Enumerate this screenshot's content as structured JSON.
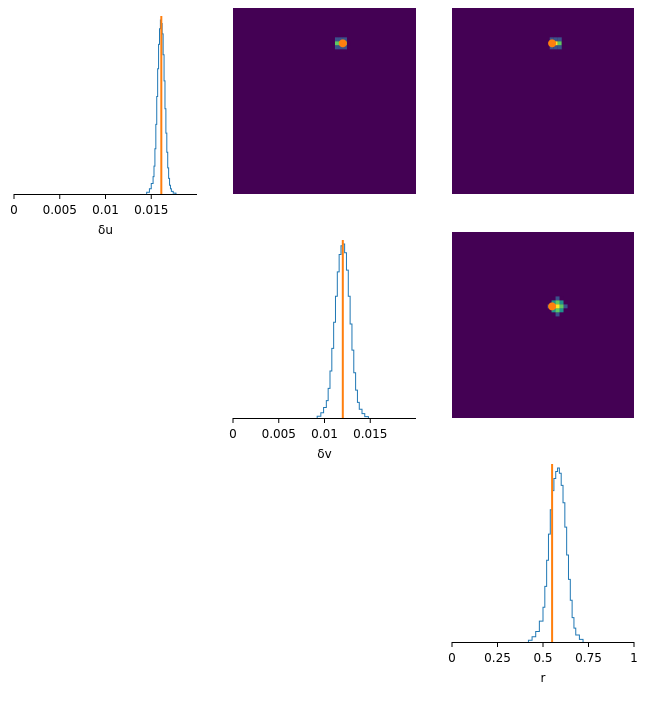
{
  "colors": {
    "histogram": "#1f77b4",
    "true_value": "#ff7f0e",
    "heatmap_background": "#440154",
    "axis": "#000000"
  },
  "chart_data": [
    {
      "type": "histogram",
      "panel": "row1-col1",
      "xlabel": "δu",
      "xlim": [
        0,
        0.02
      ],
      "x_ticks": [
        0,
        0.005,
        0.01,
        0.015
      ],
      "x_tick_labels": [
        "0",
        "0.005",
        "0.01",
        "0.015"
      ],
      "true_value": 0.0161,
      "bins_x": [
        0.0145,
        0.0148,
        0.015,
        0.0152,
        0.0153,
        0.0154,
        0.0155,
        0.0156,
        0.0157,
        0.0158,
        0.0159,
        0.016,
        0.0161,
        0.0162,
        0.0163,
        0.0164,
        0.0165,
        0.0166,
        0.0167,
        0.0168,
        0.0169,
        0.017,
        0.0171,
        0.0172,
        0.0174,
        0.0177
      ],
      "counts": [
        0.01,
        0.03,
        0.06,
        0.1,
        0.16,
        0.26,
        0.4,
        0.56,
        0.72,
        0.86,
        0.95,
        1.0,
        0.98,
        0.92,
        0.8,
        0.65,
        0.49,
        0.35,
        0.24,
        0.15,
        0.09,
        0.05,
        0.03,
        0.015,
        0.005,
        0.0
      ]
    },
    {
      "type": "heatmap",
      "panel": "row1-col2",
      "description_x": "δv",
      "description_y": "δu",
      "peak_x_fraction": 0.59,
      "peak_y_fraction": 0.81,
      "true_x_fraction": 0.6,
      "true_y_fraction": 0.81,
      "spread_x_fraction": 0.045,
      "spread_y_fraction": 0.03
    },
    {
      "type": "heatmap",
      "panel": "row1-col3",
      "description_x": "r",
      "description_y": "δu",
      "peak_x_fraction": 0.57,
      "peak_y_fraction": 0.81,
      "true_x_fraction": 0.55,
      "true_y_fraction": 0.81,
      "spread_x_fraction": 0.045,
      "spread_y_fraction": 0.03
    },
    {
      "type": "histogram",
      "panel": "row2-col2",
      "xlabel": "δv",
      "xlim": [
        0,
        0.02
      ],
      "x_ticks": [
        0,
        0.005,
        0.01,
        0.015
      ],
      "x_tick_labels": [
        "0",
        "0.005",
        "0.01",
        "0.015"
      ],
      "true_value": 0.012,
      "bins_x": [
        0.0092,
        0.0096,
        0.0099,
        0.0102,
        0.0104,
        0.0106,
        0.0108,
        0.011,
        0.0112,
        0.0114,
        0.0116,
        0.0118,
        0.012,
        0.0122,
        0.0124,
        0.0126,
        0.0128,
        0.013,
        0.0132,
        0.0134,
        0.0136,
        0.0138,
        0.0141,
        0.0144,
        0.0148
      ],
      "counts": [
        0.01,
        0.03,
        0.06,
        0.1,
        0.17,
        0.27,
        0.4,
        0.55,
        0.7,
        0.84,
        0.94,
        0.99,
        1.0,
        0.95,
        0.85,
        0.7,
        0.54,
        0.39,
        0.26,
        0.16,
        0.09,
        0.05,
        0.025,
        0.008,
        0.0
      ]
    },
    {
      "type": "heatmap",
      "panel": "row2-col3",
      "description_x": "r",
      "description_y": "δv",
      "peak_x_fraction": 0.58,
      "peak_y_fraction": 0.6,
      "true_x_fraction": 0.55,
      "true_y_fraction": 0.6,
      "spread_x_fraction": 0.05,
      "spread_y_fraction": 0.05
    },
    {
      "type": "histogram",
      "panel": "row3-col3",
      "xlabel": "r",
      "xlim": [
        0,
        1
      ],
      "x_ticks": [
        0,
        0.25,
        0.5,
        0.75,
        1
      ],
      "x_tick_labels": [
        "0",
        "0.25",
        "0.5",
        "0.75",
        "1"
      ],
      "true_value": 0.55,
      "bins_x": [
        0.42,
        0.44,
        0.46,
        0.48,
        0.5,
        0.51,
        0.52,
        0.53,
        0.54,
        0.55,
        0.56,
        0.57,
        0.58,
        0.59,
        0.6,
        0.61,
        0.62,
        0.63,
        0.64,
        0.65,
        0.66,
        0.67,
        0.68,
        0.7,
        0.72
      ],
      "counts": [
        0.01,
        0.03,
        0.06,
        0.12,
        0.2,
        0.32,
        0.47,
        0.62,
        0.76,
        0.87,
        0.94,
        0.98,
        1.0,
        0.97,
        0.9,
        0.8,
        0.66,
        0.5,
        0.36,
        0.24,
        0.14,
        0.08,
        0.04,
        0.015,
        0.0
      ]
    }
  ]
}
